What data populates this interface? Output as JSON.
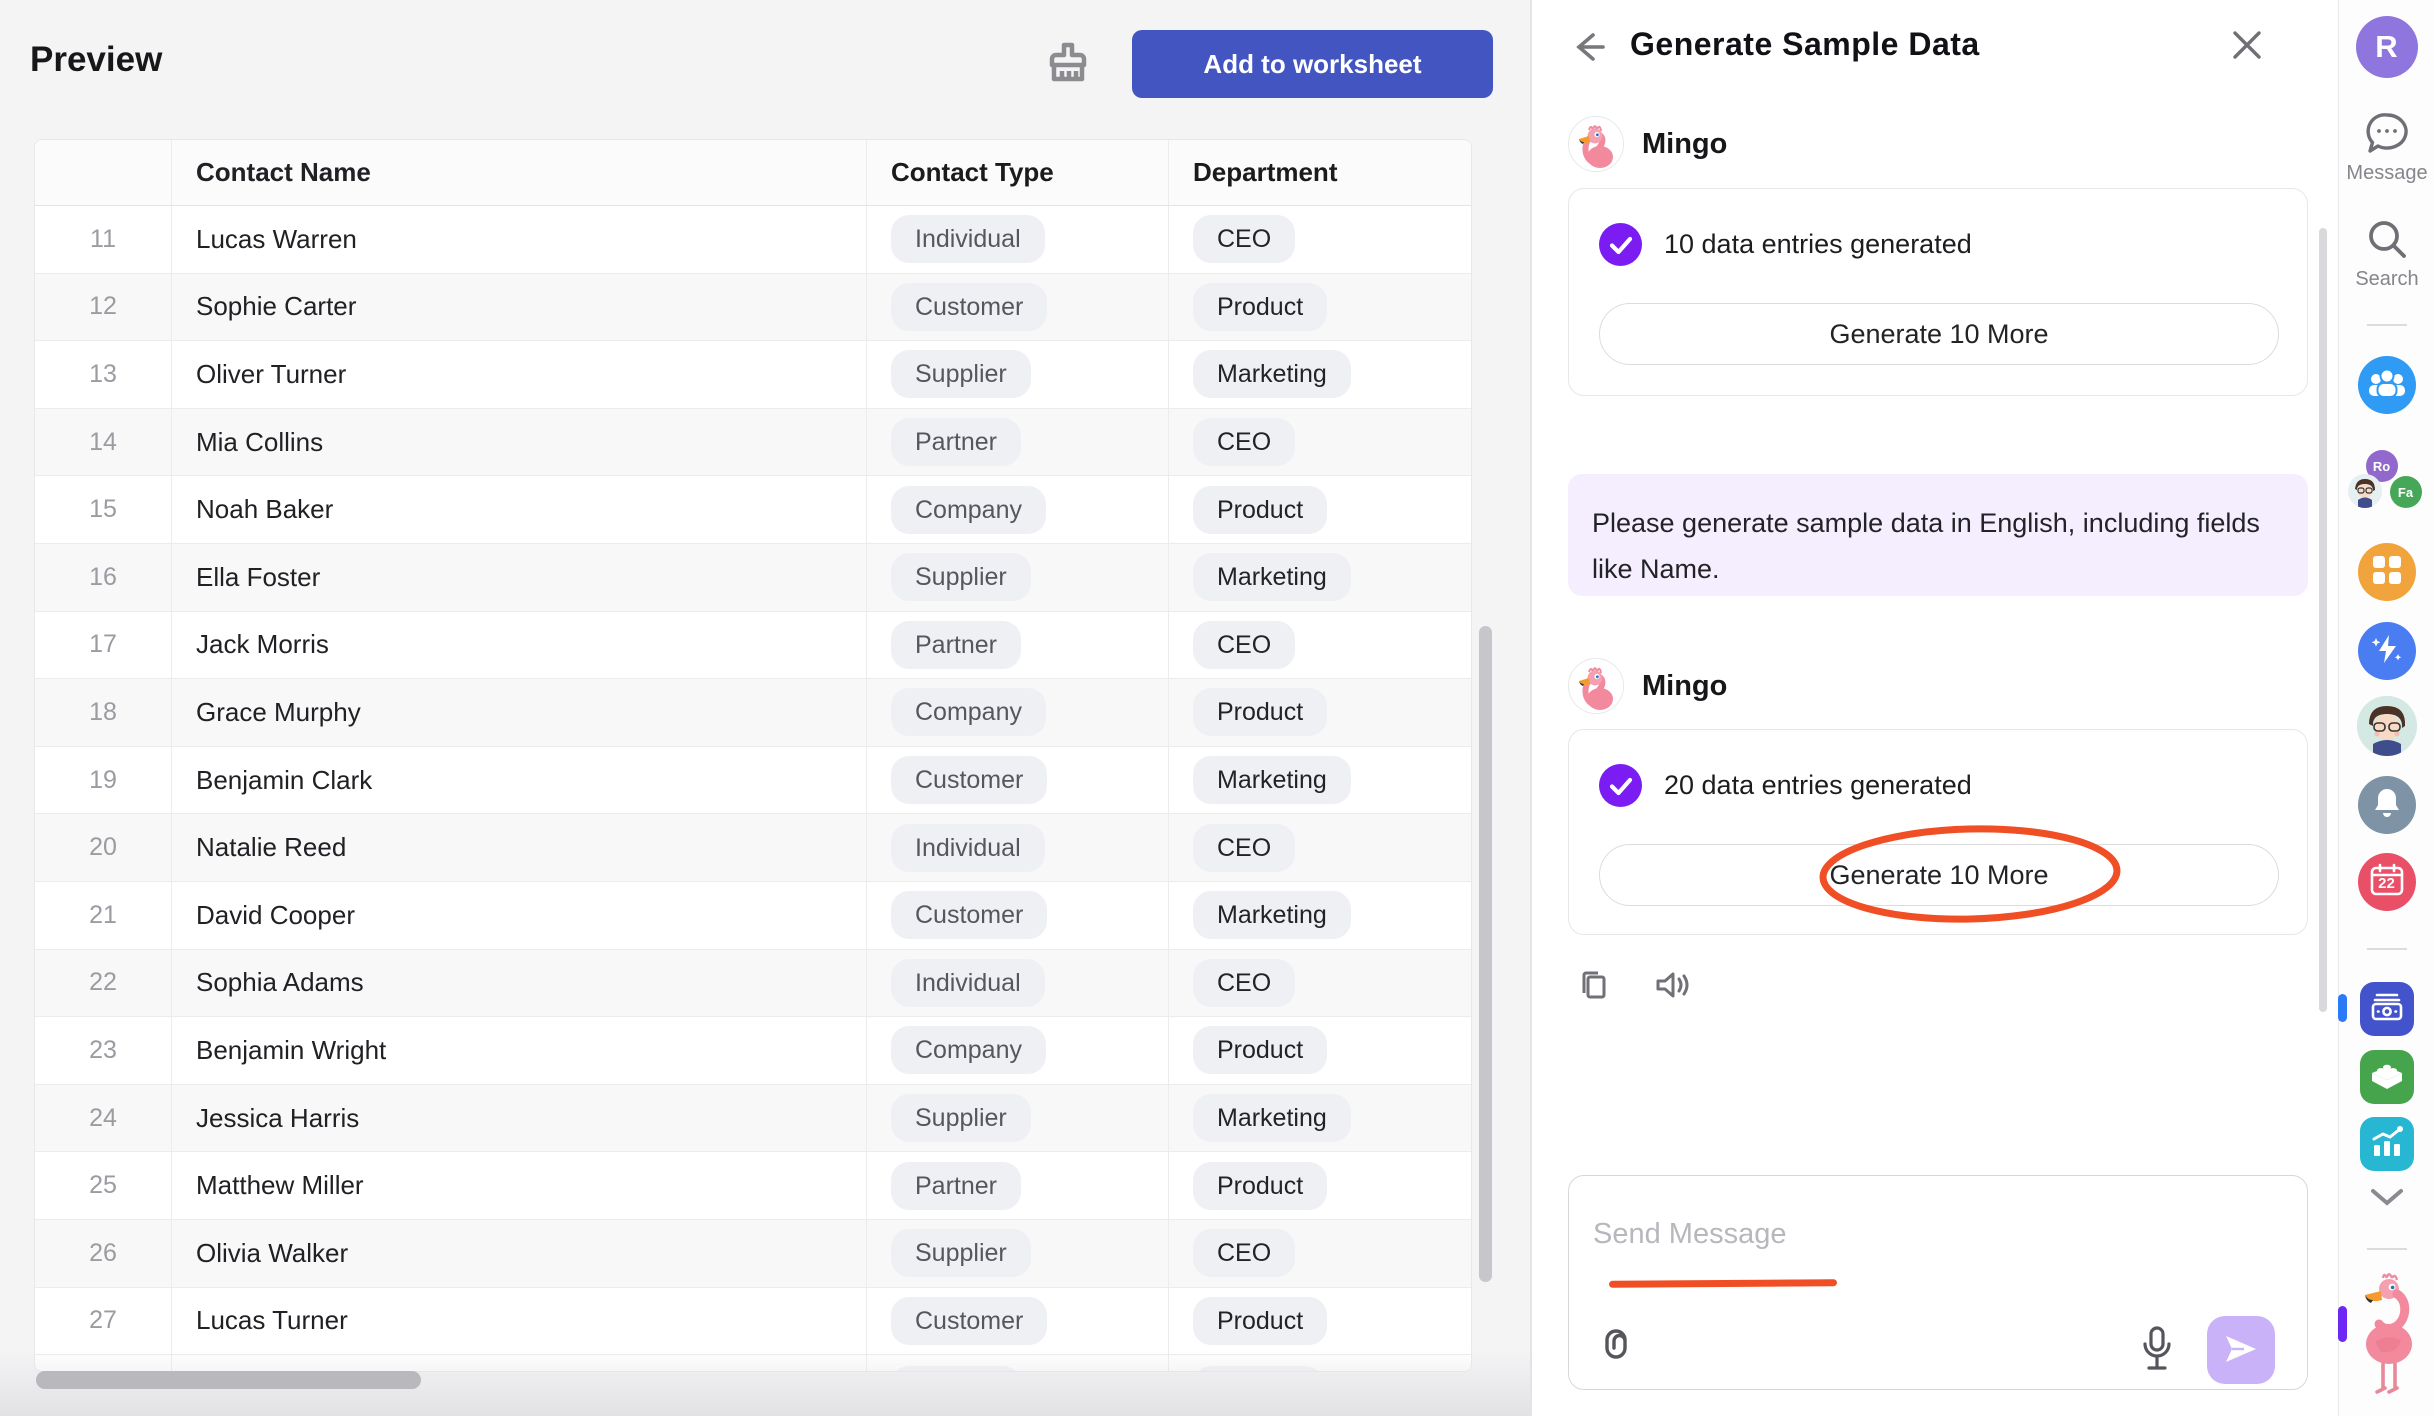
{
  "preview": {
    "title": "Preview",
    "add_button": "Add to worksheet"
  },
  "table": {
    "columns": [
      "Contact Name",
      "Contact Type",
      "Department"
    ],
    "rows": [
      {
        "num": "11",
        "name": "Lucas Warren",
        "type": "Individual",
        "dept": "CEO"
      },
      {
        "num": "12",
        "name": "Sophie Carter",
        "type": "Customer",
        "dept": "Product"
      },
      {
        "num": "13",
        "name": "Oliver Turner",
        "type": "Supplier",
        "dept": "Marketing"
      },
      {
        "num": "14",
        "name": "Mia Collins",
        "type": "Partner",
        "dept": "CEO"
      },
      {
        "num": "15",
        "name": "Noah Baker",
        "type": "Company",
        "dept": "Product"
      },
      {
        "num": "16",
        "name": "Ella Foster",
        "type": "Supplier",
        "dept": "Marketing"
      },
      {
        "num": "17",
        "name": "Jack Morris",
        "type": "Partner",
        "dept": "CEO"
      },
      {
        "num": "18",
        "name": "Grace Murphy",
        "type": "Company",
        "dept": "Product"
      },
      {
        "num": "19",
        "name": "Benjamin Clark",
        "type": "Customer",
        "dept": "Marketing"
      },
      {
        "num": "20",
        "name": "Natalie Reed",
        "type": "Individual",
        "dept": "CEO"
      },
      {
        "num": "21",
        "name": "David Cooper",
        "type": "Customer",
        "dept": "Marketing"
      },
      {
        "num": "22",
        "name": "Sophia Adams",
        "type": "Individual",
        "dept": "CEO"
      },
      {
        "num": "23",
        "name": "Benjamin Wright",
        "type": "Company",
        "dept": "Product"
      },
      {
        "num": "24",
        "name": "Jessica Harris",
        "type": "Supplier",
        "dept": "Marketing"
      },
      {
        "num": "25",
        "name": "Matthew Miller",
        "type": "Partner",
        "dept": "Product"
      },
      {
        "num": "26",
        "name": "Olivia Walker",
        "type": "Supplier",
        "dept": "CEO"
      },
      {
        "num": "27",
        "name": "Lucas Turner",
        "type": "Customer",
        "dept": "Product"
      }
    ]
  },
  "chat": {
    "title": "Generate Sample Data",
    "assistant_name": "Mingo",
    "messages": [
      {
        "status": "10 data entries generated",
        "action": "Generate 10 More"
      },
      {
        "status": "20 data entries generated",
        "action": "Generate 10 More"
      }
    ],
    "user_message": "Please generate sample data in English, including fields like Name.",
    "input_placeholder": "Send Message"
  },
  "rail": {
    "avatar_initial": "R",
    "message_label": "Message",
    "search_label": "Search",
    "badge_ro": "Ro",
    "badge_fa": "Fa",
    "calendar_day": "22"
  },
  "colors": {
    "accent_blue": "#4355c0",
    "check_purple": "#7b1df2",
    "annotation_orange": "#f04e24",
    "bubble_lavender": "#f4eefe",
    "send_purple": "#c9b2f8"
  }
}
